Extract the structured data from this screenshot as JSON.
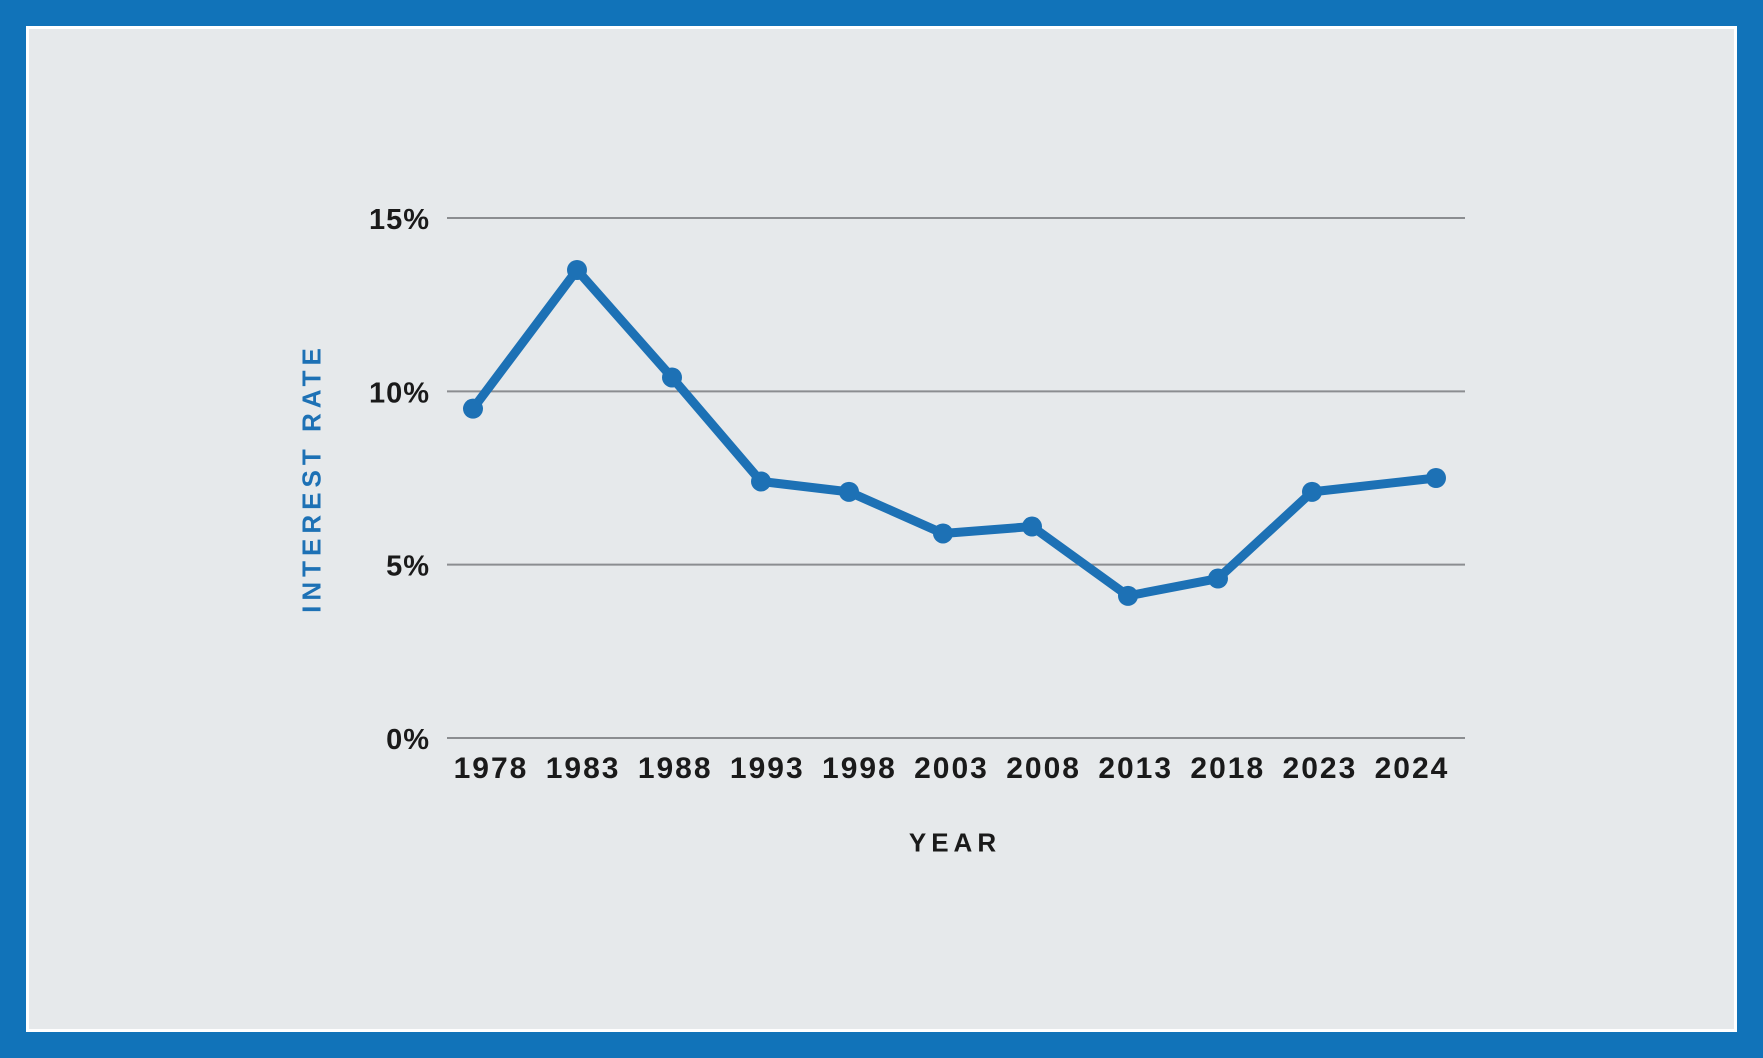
{
  "colors": {
    "frame_blue": "#1173b9",
    "panel_background": "#e6e9eb",
    "panel_border_white": "#ffffff",
    "gridline_gray": "#8b8d90",
    "tick_text": "#1a1a1a",
    "series_blue": "#1d71b5"
  },
  "chart_data": {
    "type": "line",
    "x": [
      "1978",
      "1983",
      "1988",
      "1993",
      "1998",
      "2003",
      "2008",
      "2013",
      "2018",
      "2023",
      "2024"
    ],
    "series": [
      {
        "name": "Interest Rate",
        "values": [
          9.5,
          13.5,
          10.4,
          7.4,
          7.1,
          5.9,
          6.1,
          4.1,
          4.6,
          7.1,
          7.5
        ]
      }
    ],
    "xlabel": "YEAR",
    "ylabel": "INTEREST RATE",
    "ylim": [
      0,
      15
    ],
    "yticks": [
      {
        "label": "15%",
        "value": 15
      },
      {
        "label": "10%",
        "value": 10
      },
      {
        "label": "5%",
        "value": 5
      },
      {
        "label": "0%",
        "value": 0
      }
    ],
    "grid": "horizontal-only",
    "legend": "none",
    "marker": "circle",
    "line_width": 9,
    "marker_radius": 10
  }
}
